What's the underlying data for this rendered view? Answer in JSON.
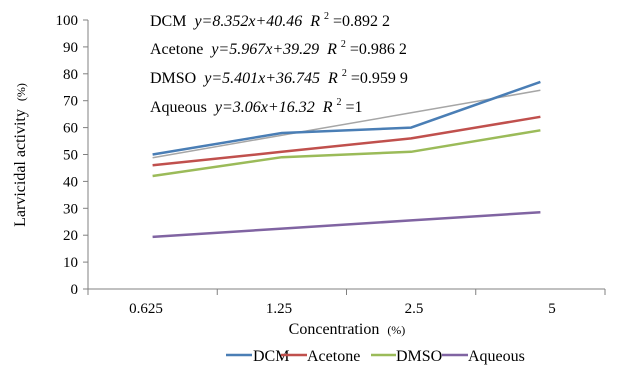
{
  "chart_data": {
    "type": "line",
    "categories": [
      "0.625",
      "1.25",
      "2.5",
      "5"
    ],
    "xlabel": "Concentration",
    "xlabel_unit": "(%)",
    "ylabel": "Larvicidal activity",
    "ylabel_unit": "(%)",
    "ylim": [
      0,
      100
    ],
    "yticks": [
      "0",
      "10",
      "20",
      "30",
      "40",
      "50",
      "60",
      "70",
      "80",
      "90",
      "100"
    ],
    "grid": false,
    "legend_position": "bottom",
    "series": [
      {
        "name": "DCM",
        "color": "#4a7eb5",
        "values": [
          50,
          58,
          60,
          77
        ]
      },
      {
        "name": "Acetone",
        "color": "#c0504d",
        "values": [
          46,
          51,
          56,
          64
        ]
      },
      {
        "name": "DMSO",
        "color": "#9bbb59",
        "values": [
          42,
          49,
          51,
          59
        ]
      },
      {
        "name": "Aqueous",
        "color": "#8064a2",
        "values": [
          19.38,
          22.44,
          25.5,
          28.56
        ]
      }
    ],
    "trendline": {
      "color": "#a6a6a6",
      "values": [
        48.81,
        57.16,
        65.52,
        73.87
      ]
    },
    "annotations": [
      {
        "label": "DCM",
        "equation": "y=8.352x+40.46",
        "r2_label": "R",
        "r2_sup": "2",
        "r2_value": "=0.892 2"
      },
      {
        "label": "Acetone",
        "equation": "y=5.967x+39.29",
        "r2_label": "R",
        "r2_sup": "2",
        "r2_value": "=0.986 2"
      },
      {
        "label": "DMSO",
        "equation": "y=5.401x+36.745",
        "r2_label": "R",
        "r2_sup": "2",
        "r2_value": "=0.959 9"
      },
      {
        "label": "Aqueous",
        "equation": "y=3.06x+16.32",
        "r2_label": "R",
        "r2_sup": "2",
        "r2_value": "=1"
      }
    ]
  }
}
